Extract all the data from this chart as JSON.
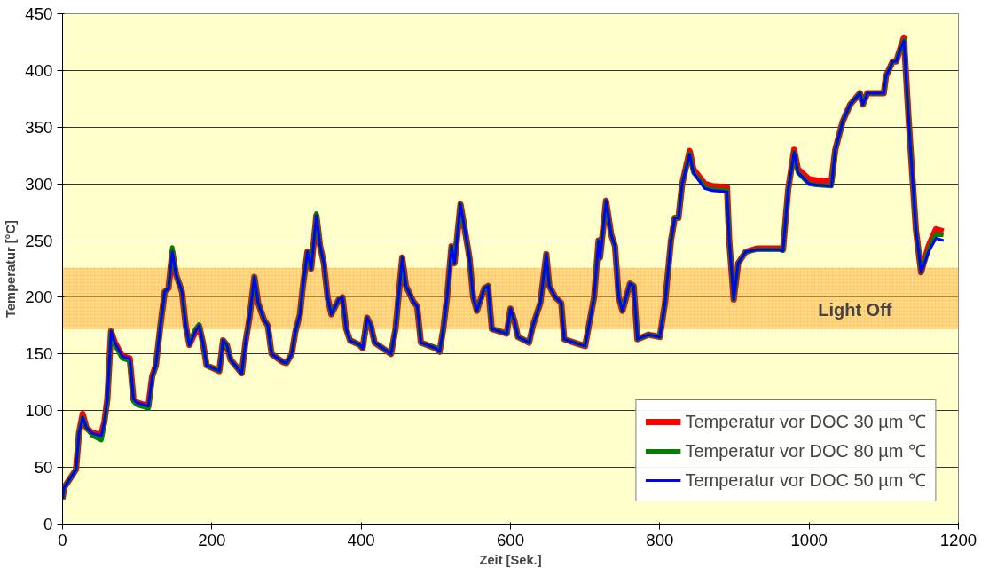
{
  "chart_data": {
    "type": "line",
    "xlabel": "Zeit [Sek.]",
    "ylabel": "Temperatur [°C]",
    "x": [
      0,
      2,
      12,
      18,
      22,
      27,
      32,
      40,
      52,
      56,
      60,
      65,
      70,
      80,
      90,
      95,
      100,
      115,
      120,
      125,
      132,
      137,
      142,
      147,
      152,
      160,
      165,
      170,
      178,
      183,
      188,
      193,
      210,
      215,
      220,
      225,
      240,
      245,
      250,
      257,
      262,
      270,
      275,
      280,
      295,
      300,
      307,
      312,
      318,
      322,
      328,
      333,
      340,
      345,
      350,
      355,
      360,
      370,
      375,
      380,
      385,
      398,
      402,
      408,
      413,
      418,
      440,
      446,
      450,
      455,
      460,
      470,
      475,
      480,
      500,
      505,
      510,
      515,
      521,
      525,
      533,
      540,
      545,
      550,
      555,
      565,
      570,
      575,
      595,
      600,
      605,
      610,
      625,
      630,
      640,
      648,
      652,
      660,
      668,
      672,
      690,
      700,
      705,
      712,
      718,
      720,
      728,
      735,
      740,
      745,
      750,
      760,
      765,
      770,
      785,
      800,
      807,
      815,
      820,
      825,
      830,
      840,
      845,
      860,
      870,
      890,
      893,
      899,
      905,
      915,
      930,
      960,
      965,
      972,
      980,
      985,
      1000,
      1010,
      1030,
      1035,
      1045,
      1055,
      1068,
      1072,
      1078,
      1100,
      1103,
      1112,
      1117,
      1120,
      1127,
      1133,
      1143,
      1150,
      1160,
      1170,
      1180
    ],
    "series": [
      {
        "name": "Temperatur vor DOC 30 µm ℃",
        "color": "#ff0000",
        "values": [
          22,
          32,
          42,
          48,
          80,
          97,
          85,
          80,
          79,
          90,
          110,
          170,
          160,
          148,
          146,
          110,
          107,
          104,
          130,
          140,
          180,
          205,
          208,
          240,
          220,
          205,
          175,
          158,
          170,
          175,
          160,
          140,
          135,
          162,
          158,
          145,
          133,
          160,
          180,
          218,
          195,
          180,
          175,
          150,
          143,
          142,
          150,
          170,
          185,
          210,
          240,
          225,
          272,
          245,
          230,
          200,
          185,
          198,
          200,
          172,
          162,
          158,
          155,
          182,
          175,
          160,
          150,
          172,
          200,
          235,
          210,
          196,
          192,
          160,
          155,
          152,
          172,
          200,
          245,
          230,
          282,
          255,
          235,
          200,
          188,
          208,
          210,
          172,
          168,
          190,
          180,
          165,
          160,
          175,
          195,
          238,
          210,
          200,
          195,
          163,
          159,
          157,
          175,
          200,
          250,
          235,
          285,
          255,
          245,
          200,
          188,
          212,
          210,
          163,
          167,
          165,
          195,
          250,
          270,
          270,
          300,
          329,
          313,
          300,
          298,
          297,
          250,
          198,
          230,
          240,
          243,
          243,
          242,
          295,
          330,
          313,
          304,
          303,
          302,
          330,
          355,
          370,
          380,
          370,
          380,
          380,
          395,
          408,
          408,
          415,
          429,
          360,
          260,
          222,
          245,
          260,
          258
        ]
      },
      {
        "name": "Temperatur vor DOC 80 µm ℃",
        "color": "#008000",
        "values": [
          22,
          32,
          42,
          48,
          80,
          94,
          85,
          78,
          74,
          88,
          108,
          170,
          158,
          146,
          144,
          108,
          105,
          102,
          128,
          140,
          180,
          205,
          208,
          244,
          220,
          205,
          175,
          158,
          172,
          176,
          160,
          140,
          135,
          162,
          158,
          145,
          133,
          160,
          180,
          218,
          195,
          180,
          175,
          150,
          143,
          142,
          150,
          170,
          185,
          210,
          240,
          225,
          274,
          245,
          230,
          200,
          185,
          198,
          200,
          172,
          162,
          158,
          155,
          182,
          175,
          160,
          150,
          172,
          200,
          235,
          210,
          196,
          192,
          160,
          155,
          152,
          172,
          200,
          245,
          230,
          282,
          255,
          235,
          200,
          188,
          208,
          210,
          172,
          168,
          190,
          180,
          165,
          160,
          175,
          195,
          238,
          210,
          200,
          195,
          163,
          159,
          157,
          175,
          200,
          250,
          235,
          285,
          255,
          245,
          200,
          188,
          212,
          210,
          163,
          167,
          165,
          195,
          250,
          270,
          270,
          300,
          327,
          310,
          298,
          295,
          294,
          250,
          198,
          230,
          240,
          242,
          242,
          241,
          295,
          328,
          310,
          300,
          299,
          298,
          330,
          355,
          370,
          380,
          370,
          380,
          380,
          395,
          408,
          408,
          415,
          427,
          360,
          260,
          222,
          242,
          256,
          255
        ]
      },
      {
        "name": "Temperatur vor DOC 50 µm ℃",
        "color": "#0000ff",
        "values": [
          22,
          32,
          42,
          48,
          80,
          94,
          85,
          80,
          78,
          90,
          110,
          170,
          160,
          148,
          146,
          110,
          107,
          104,
          130,
          140,
          180,
          205,
          208,
          240,
          220,
          205,
          175,
          158,
          170,
          175,
          160,
          140,
          135,
          162,
          158,
          145,
          133,
          160,
          180,
          218,
          195,
          180,
          175,
          150,
          143,
          142,
          150,
          170,
          185,
          210,
          240,
          225,
          272,
          245,
          230,
          200,
          185,
          198,
          200,
          172,
          162,
          158,
          155,
          182,
          175,
          160,
          150,
          172,
          200,
          235,
          210,
          196,
          192,
          160,
          155,
          152,
          172,
          200,
          245,
          230,
          282,
          255,
          235,
          200,
          188,
          208,
          210,
          172,
          168,
          190,
          180,
          165,
          160,
          175,
          195,
          238,
          210,
          200,
          195,
          163,
          159,
          157,
          175,
          200,
          250,
          235,
          285,
          255,
          245,
          200,
          188,
          212,
          210,
          163,
          167,
          165,
          195,
          250,
          270,
          270,
          300,
          326,
          310,
          296,
          294,
          293,
          250,
          198,
          230,
          240,
          242,
          242,
          241,
          295,
          328,
          310,
          300,
          299,
          298,
          330,
          355,
          370,
          380,
          370,
          380,
          380,
          395,
          408,
          408,
          415,
          426,
          360,
          260,
          222,
          240,
          252,
          250
        ]
      }
    ],
    "xlim": [
      0,
      1200
    ],
    "xticks": [
      0,
      200,
      400,
      600,
      800,
      1000,
      1200
    ],
    "ylim": [
      0,
      450
    ],
    "yticks": [
      0,
      50,
      100,
      150,
      200,
      250,
      300,
      350,
      400,
      450
    ],
    "bands": [
      {
        "axis": "y",
        "from": 172,
        "to": 226,
        "label": "Light Off",
        "color": "#ffb84d"
      }
    ],
    "grid": "y",
    "legend": "bottom right",
    "marker": "none",
    "line_style": "solid"
  }
}
